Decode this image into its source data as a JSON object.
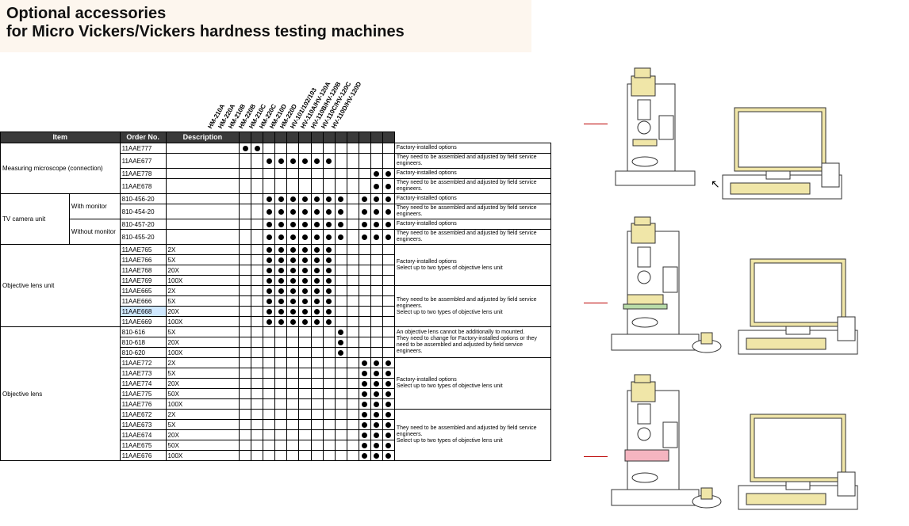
{
  "title": {
    "line1": "Optional accessories",
    "line2": "for Micro Vickers/Vickers hardness testing machines"
  },
  "headers": {
    "item": "Item",
    "order": "Order No.",
    "desc": "Description"
  },
  "models": [
    "HM-210A",
    "HM-220A",
    "HM-210B",
    "HM-220B",
    "HM-210C",
    "HM-220C",
    "HM-210D",
    "HM-220D",
    "HV-101/102/103",
    "HV-110A/HV-120A",
    "HV-110B/HV-120B",
    "HV-110C/HV-120C",
    "HV-110D/HV-120D"
  ],
  "rows": [
    {
      "item": "Measuring microscope (connection)",
      "itemSpan": 4,
      "sub": "",
      "subSpan": 0,
      "order": "11AAE777",
      "desc": "",
      "dots": [
        1,
        1,
        0,
        0,
        0,
        0,
        0,
        0,
        0,
        0,
        0,
        0,
        0
      ],
      "note": "Factory-installed options",
      "noteSpan": 1
    },
    {
      "order": "11AAE677",
      "desc": "",
      "dots": [
        0,
        0,
        1,
        1,
        1,
        1,
        1,
        1,
        0,
        0,
        0,
        0,
        0
      ],
      "note": "They need to be assembled and adjusted by field service engineers.",
      "noteSpan": 1
    },
    {
      "order": "11AAE778",
      "desc": "",
      "dots": [
        0,
        0,
        0,
        0,
        0,
        0,
        0,
        0,
        0,
        0,
        0,
        1,
        1
      ],
      "note": "Factory-installed options",
      "noteSpan": 1
    },
    {
      "order": "11AAE678",
      "desc": "",
      "dots": [
        0,
        0,
        0,
        0,
        0,
        0,
        0,
        0,
        0,
        0,
        0,
        1,
        1
      ],
      "note": "They need to be assembled and adjusted by field service engineers.",
      "noteSpan": 1
    },
    {
      "item": "TV camera unit",
      "itemSpan": 4,
      "sub": "With monitor",
      "subSpan": 2,
      "order": "810-456-20",
      "desc": "",
      "dots": [
        0,
        0,
        1,
        1,
        1,
        1,
        1,
        1,
        1,
        0,
        1,
        1,
        1
      ],
      "note": "Factory-installed options",
      "noteSpan": 1
    },
    {
      "order": "810-454-20",
      "desc": "",
      "dots": [
        0,
        0,
        1,
        1,
        1,
        1,
        1,
        1,
        1,
        0,
        1,
        1,
        1
      ],
      "note": "They need to be assembled and adjusted by field service engineers.",
      "noteSpan": 1
    },
    {
      "sub": "Without monitor",
      "subSpan": 2,
      "order": "810-457-20",
      "desc": "",
      "dots": [
        0,
        0,
        1,
        1,
        1,
        1,
        1,
        1,
        1,
        0,
        1,
        1,
        1
      ],
      "note": "Factory-installed options",
      "noteSpan": 1
    },
    {
      "order": "810-455-20",
      "desc": "",
      "dots": [
        0,
        0,
        1,
        1,
        1,
        1,
        1,
        1,
        1,
        0,
        1,
        1,
        1
      ],
      "note": "They need to be assembled and adjusted by field service engineers.",
      "noteSpan": 1
    },
    {
      "item": "Objective lens unit",
      "itemSpan": 8,
      "sub": "",
      "subSpan": 0,
      "order": "11AAE765",
      "desc": "2X",
      "dots": [
        0,
        0,
        1,
        1,
        1,
        1,
        1,
        1,
        0,
        0,
        0,
        0,
        0
      ],
      "note": "Factory-installed options\nSelect up to two types of objective lens unit",
      "noteSpan": 4
    },
    {
      "order": "11AAE766",
      "desc": "5X",
      "dots": [
        0,
        0,
        1,
        1,
        1,
        1,
        1,
        1,
        0,
        0,
        0,
        0,
        0
      ]
    },
    {
      "order": "11AAE768",
      "desc": "20X",
      "dots": [
        0,
        0,
        1,
        1,
        1,
        1,
        1,
        1,
        0,
        0,
        0,
        0,
        0
      ]
    },
    {
      "order": "11AAE769",
      "desc": "100X",
      "dots": [
        0,
        0,
        1,
        1,
        1,
        1,
        1,
        1,
        0,
        0,
        0,
        0,
        0
      ]
    },
    {
      "order": "11AAE665",
      "desc": "2X",
      "dots": [
        0,
        0,
        1,
        1,
        1,
        1,
        1,
        1,
        0,
        0,
        0,
        0,
        0
      ],
      "note": "They need to be assembled and adjusted by field service engineers.\nSelect up to two types of objective lens unit",
      "noteSpan": 4
    },
    {
      "order": "11AAE666",
      "desc": "5X",
      "dots": [
        0,
        0,
        1,
        1,
        1,
        1,
        1,
        1,
        0,
        0,
        0,
        0,
        0
      ]
    },
    {
      "order": "11AAE668",
      "desc": "20X",
      "dots": [
        0,
        0,
        1,
        1,
        1,
        1,
        1,
        1,
        0,
        0,
        0,
        0,
        0
      ],
      "hl": true
    },
    {
      "order": "11AAE669",
      "desc": "100X",
      "dots": [
        0,
        0,
        1,
        1,
        1,
        1,
        1,
        1,
        0,
        0,
        0,
        0,
        0
      ]
    },
    {
      "item": "Objective lens",
      "itemSpan": 13,
      "sub": "",
      "subSpan": 0,
      "order": "810-616",
      "desc": "5X",
      "dots": [
        0,
        0,
        0,
        0,
        0,
        0,
        0,
        0,
        1,
        0,
        0,
        0,
        0
      ],
      "note": "An objective lens cannot be additionally to mounted.\nThey need to change for Factory-installed options or they need to be assembled and adjusted by field service engineers.",
      "noteSpan": 3
    },
    {
      "order": "810-618",
      "desc": "20X",
      "dots": [
        0,
        0,
        0,
        0,
        0,
        0,
        0,
        0,
        1,
        0,
        0,
        0,
        0
      ]
    },
    {
      "order": "810-620",
      "desc": "100X",
      "dots": [
        0,
        0,
        0,
        0,
        0,
        0,
        0,
        0,
        1,
        0,
        0,
        0,
        0
      ]
    },
    {
      "order": "11AAE772",
      "desc": "2X",
      "dots": [
        0,
        0,
        0,
        0,
        0,
        0,
        0,
        0,
        0,
        0,
        1,
        1,
        1
      ],
      "note": "Factory-installed options\nSelect up to two types of objective lens unit",
      "noteSpan": 5
    },
    {
      "order": "11AAE773",
      "desc": "5X",
      "dots": [
        0,
        0,
        0,
        0,
        0,
        0,
        0,
        0,
        0,
        0,
        1,
        1,
        1
      ]
    },
    {
      "order": "11AAE774",
      "desc": "20X",
      "dots": [
        0,
        0,
        0,
        0,
        0,
        0,
        0,
        0,
        0,
        0,
        1,
        1,
        1
      ]
    },
    {
      "order": "11AAE775",
      "desc": "50X",
      "dots": [
        0,
        0,
        0,
        0,
        0,
        0,
        0,
        0,
        0,
        0,
        1,
        1,
        1
      ]
    },
    {
      "order": "11AAE776",
      "desc": "100X",
      "dots": [
        0,
        0,
        0,
        0,
        0,
        0,
        0,
        0,
        0,
        0,
        1,
        1,
        1
      ]
    },
    {
      "order": "11AAE672",
      "desc": "2X",
      "dots": [
        0,
        0,
        0,
        0,
        0,
        0,
        0,
        0,
        0,
        0,
        1,
        1,
        1
      ],
      "note": "They need to be assembled and adjusted by field service engineers.\nSelect up to two types of objective lens unit",
      "noteSpan": 5
    },
    {
      "order": "11AAE673",
      "desc": "5X",
      "dots": [
        0,
        0,
        0,
        0,
        0,
        0,
        0,
        0,
        0,
        0,
        1,
        1,
        1
      ]
    },
    {
      "order": "11AAE674",
      "desc": "20X",
      "dots": [
        0,
        0,
        0,
        0,
        0,
        0,
        0,
        0,
        0,
        0,
        1,
        1,
        1
      ]
    },
    {
      "order": "11AAE675",
      "desc": "50X",
      "dots": [
        0,
        0,
        0,
        0,
        0,
        0,
        0,
        0,
        0,
        0,
        1,
        1,
        1
      ]
    },
    {
      "order": "11AAE676",
      "desc": "100X",
      "dots": [
        0,
        0,
        0,
        0,
        0,
        0,
        0,
        0,
        0,
        0,
        1,
        1,
        1
      ]
    }
  ],
  "colors": {
    "titleBg": "#fdf6ee",
    "headerBg": "#3a3a3a",
    "headerFg": "#ffffff",
    "border": "#000000",
    "highlight": "#cfe8ff",
    "machineBody": "#f0e6a8",
    "machineStroke": "#333333",
    "stagePink": "#f5b5c0",
    "redLine": "#b00000"
  }
}
